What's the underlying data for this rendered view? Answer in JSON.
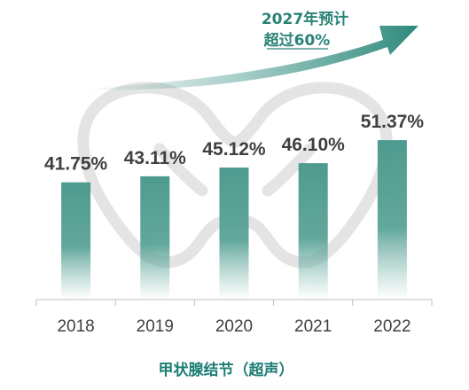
{
  "chart_data": {
    "type": "bar",
    "categories": [
      "2018",
      "2019",
      "2020",
      "2021",
      "2022"
    ],
    "values": [
      41.75,
      43.11,
      45.12,
      46.1,
      51.37
    ],
    "value_labels": [
      "41.75%",
      "43.11%",
      "45.12%",
      "46.10%",
      "51.37%"
    ],
    "xlabel": "甲状腺结节（超声）",
    "ylabel": "",
    "ylim": [
      15,
      53
    ],
    "grid": false,
    "annotation": {
      "line1": "2027年预计",
      "line2": "超过60%"
    },
    "colors": {
      "bar": "#4e9a8e",
      "arrow": "#2e8a7c",
      "text": "#404040",
      "xlabel": "#1b7d74",
      "axis": "#bfbfbf",
      "watermark": "#e4e4e4"
    }
  }
}
